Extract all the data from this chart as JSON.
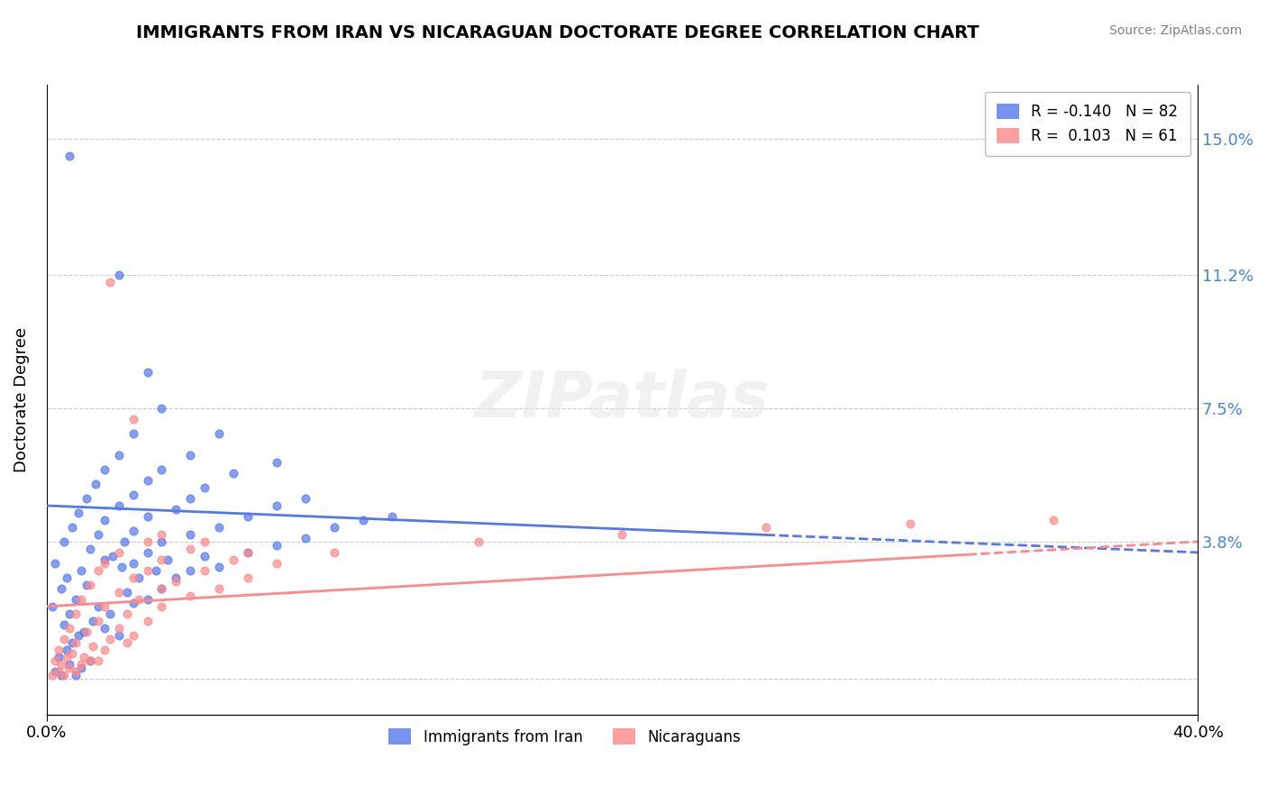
{
  "title": "IMMIGRANTS FROM IRAN VS NICARAGUAN DOCTORATE DEGREE CORRELATION CHART",
  "source": "Source: ZipAtlas.com",
  "ylabel": "Doctorate Degree",
  "xlim": [
    0.0,
    40.0
  ],
  "ylim": [
    -1.0,
    16.5
  ],
  "yticks": [
    0.0,
    3.8,
    7.5,
    11.2,
    15.0
  ],
  "ytick_labels": [
    "",
    "3.8%",
    "7.5%",
    "11.2%",
    "15.0%"
  ],
  "series1_color": "#5577ee",
  "series2_color": "#ff8888",
  "watermark": "ZIPatlas",
  "iran_dots": [
    [
      0.3,
      0.2
    ],
    [
      0.5,
      0.1
    ],
    [
      0.8,
      0.4
    ],
    [
      1.0,
      0.1
    ],
    [
      1.2,
      0.3
    ],
    [
      0.4,
      0.6
    ],
    [
      0.7,
      0.8
    ],
    [
      1.5,
      0.5
    ],
    [
      0.9,
      1.0
    ],
    [
      1.1,
      1.2
    ],
    [
      0.6,
      1.5
    ],
    [
      1.3,
      1.3
    ],
    [
      0.2,
      2.0
    ],
    [
      0.8,
      1.8
    ],
    [
      1.6,
      1.6
    ],
    [
      2.0,
      1.4
    ],
    [
      2.5,
      1.2
    ],
    [
      0.5,
      2.5
    ],
    [
      1.0,
      2.2
    ],
    [
      1.8,
      2.0
    ],
    [
      2.2,
      1.8
    ],
    [
      3.0,
      2.1
    ],
    [
      0.7,
      2.8
    ],
    [
      1.4,
      2.6
    ],
    [
      2.8,
      2.4
    ],
    [
      3.5,
      2.2
    ],
    [
      0.3,
      3.2
    ],
    [
      1.2,
      3.0
    ],
    [
      2.0,
      3.3
    ],
    [
      2.6,
      3.1
    ],
    [
      3.2,
      2.8
    ],
    [
      4.0,
      2.5
    ],
    [
      0.6,
      3.8
    ],
    [
      1.5,
      3.6
    ],
    [
      2.3,
      3.4
    ],
    [
      3.0,
      3.2
    ],
    [
      3.8,
      3.0
    ],
    [
      4.5,
      2.8
    ],
    [
      0.9,
      4.2
    ],
    [
      1.8,
      4.0
    ],
    [
      2.7,
      3.8
    ],
    [
      3.5,
      3.5
    ],
    [
      4.2,
      3.3
    ],
    [
      5.0,
      3.0
    ],
    [
      1.1,
      4.6
    ],
    [
      2.0,
      4.4
    ],
    [
      3.0,
      4.1
    ],
    [
      4.0,
      3.8
    ],
    [
      5.5,
      3.4
    ],
    [
      6.0,
      3.1
    ],
    [
      1.4,
      5.0
    ],
    [
      2.5,
      4.8
    ],
    [
      3.5,
      4.5
    ],
    [
      5.0,
      4.0
    ],
    [
      7.0,
      3.5
    ],
    [
      1.7,
      5.4
    ],
    [
      3.0,
      5.1
    ],
    [
      4.5,
      4.7
    ],
    [
      6.0,
      4.2
    ],
    [
      8.0,
      3.7
    ],
    [
      2.0,
      5.8
    ],
    [
      3.5,
      5.5
    ],
    [
      5.0,
      5.0
    ],
    [
      7.0,
      4.5
    ],
    [
      9.0,
      3.9
    ],
    [
      2.5,
      6.2
    ],
    [
      4.0,
      5.8
    ],
    [
      5.5,
      5.3
    ],
    [
      8.0,
      4.8
    ],
    [
      10.0,
      4.2
    ],
    [
      3.0,
      6.8
    ],
    [
      5.0,
      6.2
    ],
    [
      6.5,
      5.7
    ],
    [
      9.0,
      5.0
    ],
    [
      11.0,
      4.4
    ],
    [
      4.0,
      7.5
    ],
    [
      6.0,
      6.8
    ],
    [
      8.0,
      6.0
    ],
    [
      2.5,
      11.2
    ],
    [
      12.0,
      4.5
    ],
    [
      3.5,
      8.5
    ],
    [
      0.8,
      14.5
    ]
  ],
  "nicaragua_dots": [
    [
      0.2,
      0.1
    ],
    [
      0.4,
      0.2
    ],
    [
      0.6,
      0.1
    ],
    [
      0.8,
      0.3
    ],
    [
      1.0,
      0.2
    ],
    [
      0.3,
      0.5
    ],
    [
      0.5,
      0.4
    ],
    [
      0.7,
      0.6
    ],
    [
      1.2,
      0.4
    ],
    [
      1.5,
      0.5
    ],
    [
      0.4,
      0.8
    ],
    [
      0.9,
      0.7
    ],
    [
      1.3,
      0.6
    ],
    [
      1.8,
      0.5
    ],
    [
      0.6,
      1.1
    ],
    [
      1.0,
      1.0
    ],
    [
      1.6,
      0.9
    ],
    [
      2.0,
      0.8
    ],
    [
      0.8,
      1.4
    ],
    [
      1.4,
      1.3
    ],
    [
      2.2,
      1.1
    ],
    [
      2.8,
      1.0
    ],
    [
      1.0,
      1.8
    ],
    [
      1.8,
      1.6
    ],
    [
      2.5,
      1.4
    ],
    [
      3.0,
      1.2
    ],
    [
      1.2,
      2.2
    ],
    [
      2.0,
      2.0
    ],
    [
      2.8,
      1.8
    ],
    [
      3.5,
      1.6
    ],
    [
      1.5,
      2.6
    ],
    [
      2.5,
      2.4
    ],
    [
      3.2,
      2.2
    ],
    [
      4.0,
      2.0
    ],
    [
      1.8,
      3.0
    ],
    [
      3.0,
      2.8
    ],
    [
      4.0,
      2.5
    ],
    [
      5.0,
      2.3
    ],
    [
      2.0,
      3.2
    ],
    [
      3.5,
      3.0
    ],
    [
      4.5,
      2.7
    ],
    [
      6.0,
      2.5
    ],
    [
      2.5,
      3.5
    ],
    [
      4.0,
      3.3
    ],
    [
      5.5,
      3.0
    ],
    [
      7.0,
      2.8
    ],
    [
      3.0,
      7.2
    ],
    [
      8.0,
      3.2
    ],
    [
      10.0,
      3.5
    ],
    [
      15.0,
      3.8
    ],
    [
      3.5,
      3.8
    ],
    [
      5.0,
      3.6
    ],
    [
      6.5,
      3.3
    ],
    [
      20.0,
      4.0
    ],
    [
      25.0,
      4.2
    ],
    [
      4.0,
      4.0
    ],
    [
      5.5,
      3.8
    ],
    [
      7.0,
      3.5
    ],
    [
      30.0,
      4.3
    ],
    [
      35.0,
      4.4
    ],
    [
      2.2,
      11.0
    ]
  ],
  "iran_trend": {
    "x_start": 0.0,
    "y_start": 4.8,
    "x_end": 40.0,
    "y_end": 3.5
  },
  "nicaragua_trend": {
    "x_start": 0.0,
    "y_start": 2.0,
    "x_end": 40.0,
    "y_end": 3.8
  },
  "iran_dash_start": 25.0,
  "nicaragua_dash_start": 32.0,
  "legend_top": [
    {
      "label": "R = -0.140   N = 82",
      "color": "#5577ee"
    },
    {
      "label": "R =  0.103   N = 61",
      "color": "#ff8888"
    }
  ],
  "legend_bottom": [
    {
      "label": "Immigrants from Iran",
      "color": "#5577ee"
    },
    {
      "label": "Nicaraguans",
      "color": "#ff8888"
    }
  ]
}
